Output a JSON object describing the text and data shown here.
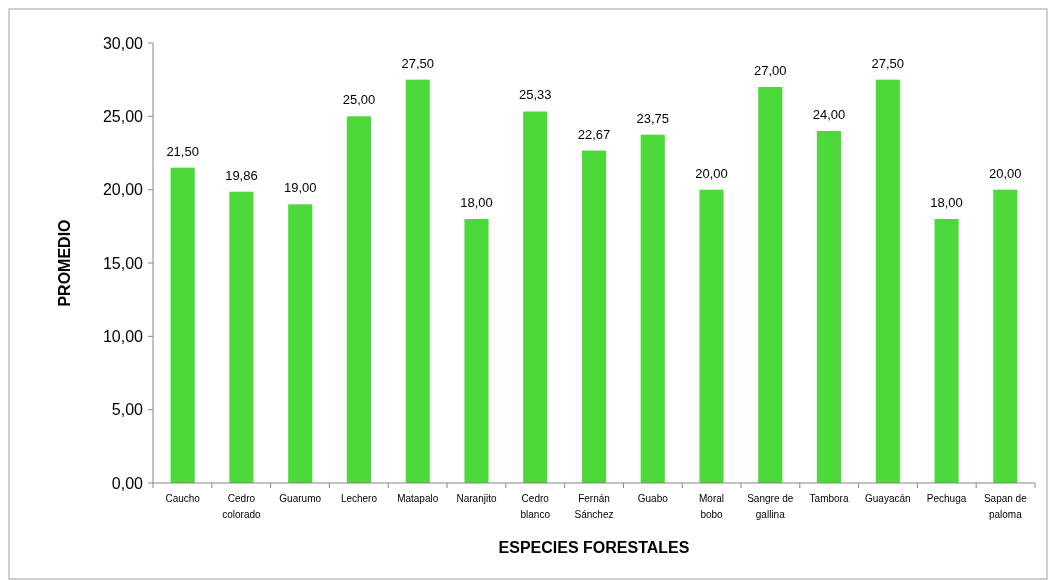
{
  "chart_data": {
    "type": "bar",
    "xlabel": "ESPECIES FORESTALES",
    "ylabel": "PROMEDIO",
    "categories": [
      "Caucho",
      "Cedro colorado",
      "Guarumo",
      "Lechero",
      "Matapalo",
      "Naranjito",
      "Cedro blanco",
      "Fernán Sánchez",
      "Guabo",
      "Moral bobo",
      "Sangre de gallina",
      "Tambora",
      "Guayacán",
      "Pechuga",
      "Sapan de paloma"
    ],
    "values": [
      21.5,
      19.86,
      19.0,
      25.0,
      27.5,
      18.0,
      25.33,
      22.67,
      23.75,
      20.0,
      27.0,
      24.0,
      27.5,
      18.0,
      20.0
    ],
    "color": "#4cd93a",
    "ylim": [
      0,
      30
    ],
    "yticks": [
      {
        "value": 0,
        "label": "0,00"
      },
      {
        "value": 5,
        "label": "5,00"
      },
      {
        "value": 10,
        "label": "10,00"
      },
      {
        "value": 15,
        "label": "15,00"
      },
      {
        "value": 20,
        "label": "20,00"
      },
      {
        "value": 25,
        "label": "25,00"
      },
      {
        "value": 30,
        "label": "30,00"
      }
    ],
    "value_labels": [
      "21,50",
      "19,86",
      "19,00",
      "25,00",
      "27,50",
      "18,00",
      "25,33",
      "22,67",
      "23,75",
      "20,00",
      "27,00",
      "24,00",
      "27,50",
      "18,00",
      "20,00"
    ],
    "grid": false
  }
}
